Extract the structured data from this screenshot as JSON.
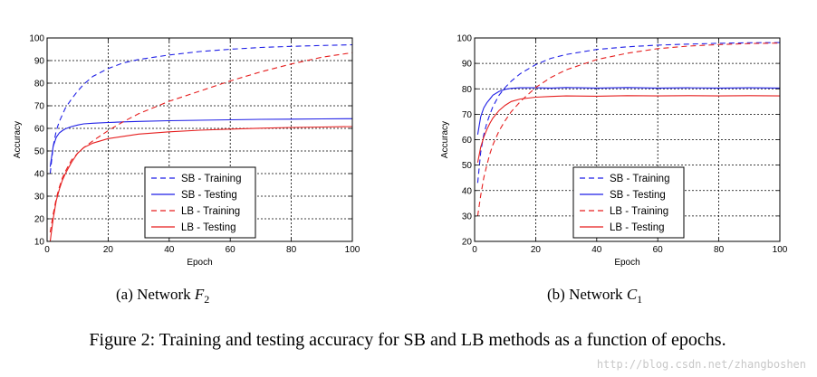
{
  "colors": {
    "sb": "#1f1fe6",
    "lb": "#e61f1f",
    "grid": "#000000"
  },
  "caption": "Figure 2: Training and testing accuracy for SB and LB methods as a function of epochs.",
  "watermark": "http://blog.csdn.net/zhangboshen",
  "chart_data": [
    {
      "type": "line",
      "subcaption_prefix": "(a) Network ",
      "subcaption_symbol": "F",
      "subcaption_sub": "2",
      "xlabel": "Epoch",
      "ylabel": "Accuracy",
      "xlim": [
        0,
        100
      ],
      "ylim": [
        10,
        100
      ],
      "xticks": [
        0,
        20,
        40,
        60,
        80,
        100
      ],
      "yticks": [
        10,
        20,
        30,
        40,
        50,
        60,
        70,
        80,
        90,
        100
      ],
      "grid": true,
      "legend_position": "bottom-center",
      "x": [
        1,
        2,
        3,
        4,
        5,
        6,
        8,
        10,
        12,
        15,
        20,
        25,
        30,
        40,
        50,
        60,
        70,
        80,
        90,
        100
      ],
      "series": [
        {
          "name": "SB - Training",
          "color_key": "sb",
          "dash": true,
          "values": [
            40,
            52,
            59,
            63,
            66,
            69,
            73,
            76.5,
            79.5,
            83,
            86.5,
            89,
            90.5,
            92.5,
            94,
            95,
            95.8,
            96.3,
            96.7,
            97
          ]
        },
        {
          "name": "SB - Testing",
          "color_key": "sb",
          "dash": false,
          "values": [
            43,
            52,
            56,
            58,
            59,
            59.8,
            60.8,
            61.5,
            62,
            62.3,
            62.6,
            62.9,
            63.1,
            63.4,
            63.6,
            63.8,
            64,
            64.1,
            64.2,
            64.3
          ]
        },
        {
          "name": "LB - Training",
          "color_key": "lb",
          "dash": true,
          "values": [
            14,
            22,
            29,
            34,
            38,
            41,
            46,
            49,
            51.5,
            54.5,
            59,
            63,
            66.5,
            72,
            76.5,
            81,
            85,
            88.5,
            91.5,
            93.5
          ]
        },
        {
          "name": "LB - Testing",
          "color_key": "lb",
          "dash": false,
          "values": [
            10,
            20,
            28,
            33,
            37,
            40,
            45,
            49,
            51.5,
            53.5,
            55.5,
            56.5,
            57.5,
            58.5,
            59.2,
            59.7,
            60.1,
            60.4,
            60.6,
            60.8
          ]
        }
      ]
    },
    {
      "type": "line",
      "subcaption_prefix": "(b) Network ",
      "subcaption_symbol": "C",
      "subcaption_sub": "1",
      "xlabel": "Epoch",
      "ylabel": "Accuracy",
      "xlim": [
        0,
        100
      ],
      "ylim": [
        20,
        100
      ],
      "xticks": [
        0,
        20,
        40,
        60,
        80,
        100
      ],
      "yticks": [
        20,
        30,
        40,
        50,
        60,
        70,
        80,
        90,
        100
      ],
      "grid": true,
      "legend_position": "bottom-center",
      "x": [
        1,
        2,
        3,
        4,
        5,
        6,
        8,
        10,
        12,
        15,
        20,
        25,
        30,
        40,
        50,
        60,
        70,
        80,
        90,
        100
      ],
      "series": [
        {
          "name": "SB - Training",
          "color_key": "sb",
          "dash": true,
          "values": [
            43,
            55,
            62,
            66.5,
            70,
            73,
            77.5,
            80.5,
            83,
            86,
            89.5,
            92,
            93.5,
            95.5,
            96.5,
            97.2,
            97.6,
            97.9,
            98.1,
            98.2
          ]
        },
        {
          "name": "SB - Testing",
          "color_key": "sb",
          "dash": false,
          "values": [
            62,
            69,
            72.5,
            74.5,
            76,
            77.5,
            79,
            79.8,
            80.2,
            80.4,
            80.4,
            80.3,
            80.5,
            80.3,
            80.5,
            80.3,
            80.4,
            80.3,
            80.4,
            80.3
          ]
        },
        {
          "name": "LB - Training",
          "color_key": "lb",
          "dash": true,
          "values": [
            30,
            38,
            45,
            50,
            54.5,
            58,
            63.5,
            67.5,
            71,
            75,
            80.5,
            84.5,
            87.5,
            91.5,
            94,
            95.8,
            96.8,
            97.4,
            97.8,
            98
          ]
        },
        {
          "name": "LB - Testing",
          "color_key": "lb",
          "dash": false,
          "values": [
            51,
            57,
            61,
            64,
            66.5,
            68.5,
            71.5,
            73.5,
            75,
            76,
            76.7,
            77,
            77.2,
            77.1,
            77.3,
            77.2,
            77.3,
            77.2,
            77.3,
            77.2
          ]
        }
      ]
    }
  ]
}
